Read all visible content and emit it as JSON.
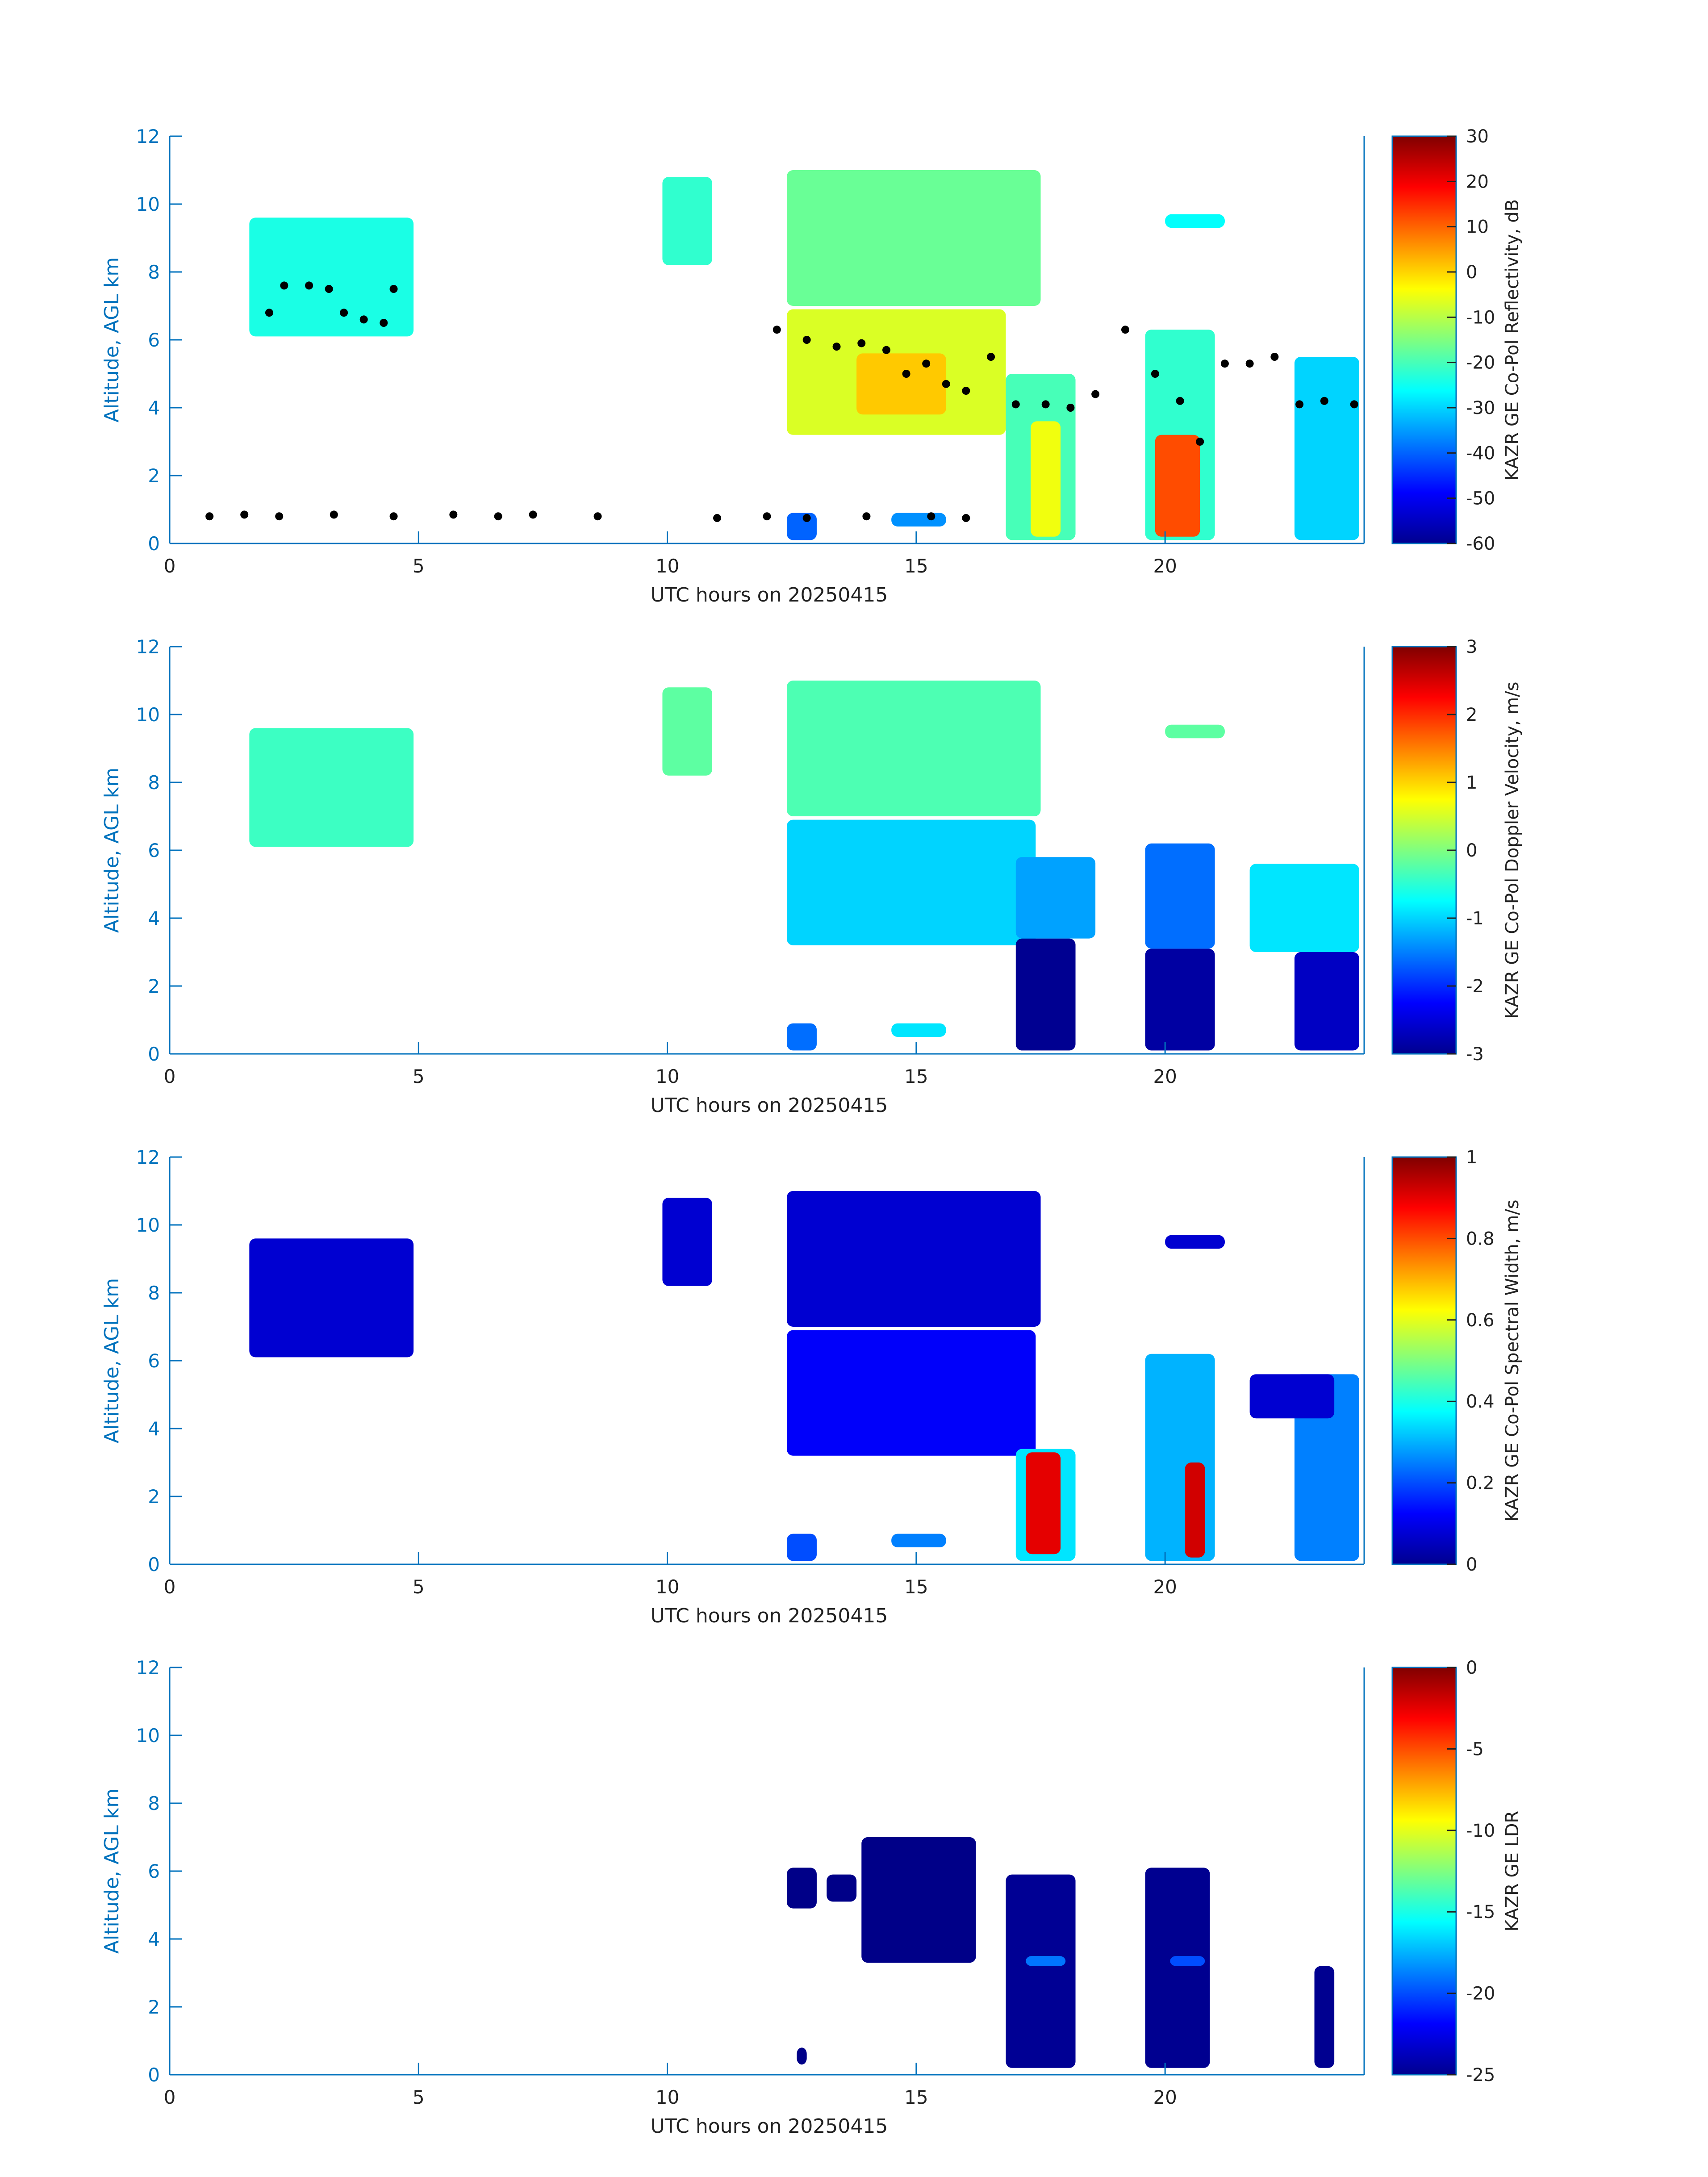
{
  "figure": {
    "xlabel": "UTC hours on 20250415",
    "ylabel": "Altitude, AGL km",
    "axis_color": "#0072bd",
    "colormap": "jet"
  },
  "chart_data": [
    {
      "type": "heatmap",
      "xlabel": "UTC hours on 20250415",
      "ylabel": "Altitude, AGL km",
      "xlim": [
        0,
        24
      ],
      "ylim": [
        0,
        12
      ],
      "xticks": [
        0,
        5,
        10,
        15,
        20
      ],
      "yticks": [
        0,
        2,
        4,
        6,
        8,
        10,
        12
      ],
      "colorbar": {
        "label": "KAZR GE Co-Pol Reflectivity, dB",
        "range": [
          -60,
          30
        ],
        "ticks": [
          -60,
          -50,
          -40,
          -30,
          -20,
          -10,
          0,
          10,
          20,
          30
        ]
      },
      "regions": [
        {
          "x0": 1.6,
          "x1": 4.9,
          "y0": 6.1,
          "y1": 9.6,
          "value": -24
        },
        {
          "x0": 9.9,
          "x1": 10.9,
          "y0": 8.2,
          "y1": 10.8,
          "value": -22
        },
        {
          "x0": 12.4,
          "x1": 17.5,
          "y0": 7.0,
          "y1": 11.0,
          "value": -17
        },
        {
          "x0": 12.4,
          "x1": 16.8,
          "y0": 3.2,
          "y1": 6.9,
          "value": -7
        },
        {
          "x0": 13.8,
          "x1": 15.6,
          "y0": 3.8,
          "y1": 5.6,
          "value": 1
        },
        {
          "x0": 16.8,
          "x1": 18.2,
          "y0": 0.1,
          "y1": 5.0,
          "value": -20
        },
        {
          "x0": 17.3,
          "x1": 17.9,
          "y0": 0.2,
          "y1": 3.6,
          "value": -5
        },
        {
          "x0": 19.6,
          "x1": 21.0,
          "y0": 0.1,
          "y1": 6.3,
          "value": -22
        },
        {
          "x0": 19.8,
          "x1": 20.7,
          "y0": 0.2,
          "y1": 3.2,
          "value": 12
        },
        {
          "x0": 22.6,
          "x1": 23.9,
          "y0": 0.1,
          "y1": 5.5,
          "value": -30
        },
        {
          "x0": 20.0,
          "x1": 21.2,
          "y0": 9.3,
          "y1": 9.7,
          "value": -26
        },
        {
          "x0": 12.4,
          "x1": 13.0,
          "y0": 0.1,
          "y1": 0.9,
          "value": -40
        },
        {
          "x0": 14.5,
          "x1": 15.6,
          "y0": 0.5,
          "y1": 0.9,
          "value": -36
        }
      ],
      "overlay_points": [
        [
          0.8,
          0.8
        ],
        [
          1.5,
          0.85
        ],
        [
          2.2,
          0.8
        ],
        [
          3.3,
          0.85
        ],
        [
          4.5,
          0.8
        ],
        [
          5.7,
          0.85
        ],
        [
          6.6,
          0.8
        ],
        [
          7.3,
          0.85
        ],
        [
          8.6,
          0.8
        ],
        [
          11.0,
          0.75
        ],
        [
          12.0,
          0.8
        ],
        [
          12.8,
          0.75
        ],
        [
          14.0,
          0.8
        ],
        [
          15.3,
          0.8
        ],
        [
          16.0,
          0.75
        ],
        [
          2.0,
          6.8
        ],
        [
          2.3,
          7.6
        ],
        [
          2.8,
          7.6
        ],
        [
          3.2,
          7.5
        ],
        [
          3.5,
          6.8
        ],
        [
          3.9,
          6.6
        ],
        [
          4.3,
          6.5
        ],
        [
          4.5,
          7.5
        ],
        [
          12.2,
          6.3
        ],
        [
          12.8,
          6.0
        ],
        [
          13.4,
          5.8
        ],
        [
          13.9,
          5.9
        ],
        [
          14.4,
          5.7
        ],
        [
          14.8,
          5.0
        ],
        [
          15.2,
          5.3
        ],
        [
          15.6,
          4.7
        ],
        [
          16.0,
          4.5
        ],
        [
          16.5,
          5.5
        ],
        [
          17.0,
          4.1
        ],
        [
          17.6,
          4.1
        ],
        [
          18.1,
          4.0
        ],
        [
          18.6,
          4.4
        ],
        [
          19.2,
          6.3
        ],
        [
          19.8,
          5.0
        ],
        [
          20.3,
          4.2
        ],
        [
          20.7,
          3.0
        ],
        [
          21.2,
          5.3
        ],
        [
          21.7,
          5.3
        ],
        [
          22.2,
          5.5
        ],
        [
          22.7,
          4.1
        ],
        [
          23.2,
          4.2
        ],
        [
          23.8,
          4.1
        ]
      ]
    },
    {
      "type": "heatmap",
      "xlabel": "UTC hours on 20250415",
      "ylabel": "Altitude, AGL km",
      "xlim": [
        0,
        24
      ],
      "ylim": [
        0,
        12
      ],
      "xticks": [
        0,
        5,
        10,
        15,
        20
      ],
      "yticks": [
        0,
        2,
        4,
        6,
        8,
        10,
        12
      ],
      "colorbar": {
        "label": "KAZR GE Co-Pol Doppler Velocity, m/s",
        "range": [
          -3,
          3
        ],
        "ticks": [
          -3,
          -2,
          -1,
          0,
          1,
          2,
          3
        ]
      },
      "regions": [
        {
          "x0": 1.6,
          "x1": 4.9,
          "y0": 6.1,
          "y1": 9.6,
          "value": -0.4
        },
        {
          "x0": 9.9,
          "x1": 10.9,
          "y0": 8.2,
          "y1": 10.8,
          "value": -0.2
        },
        {
          "x0": 12.4,
          "x1": 17.5,
          "y0": 7.0,
          "y1": 11.0,
          "value": -0.3
        },
        {
          "x0": 12.4,
          "x1": 17.4,
          "y0": 3.2,
          "y1": 6.9,
          "value": -1.0
        },
        {
          "x0": 17.0,
          "x1": 18.2,
          "y0": 0.1,
          "y1": 3.4,
          "value": -2.9
        },
        {
          "x0": 17.0,
          "x1": 18.6,
          "y0": 3.4,
          "y1": 5.8,
          "value": -1.3
        },
        {
          "x0": 19.6,
          "x1": 21.0,
          "y0": 0.1,
          "y1": 3.1,
          "value": -2.8
        },
        {
          "x0": 19.6,
          "x1": 21.0,
          "y0": 3.1,
          "y1": 6.2,
          "value": -1.6
        },
        {
          "x0": 22.6,
          "x1": 23.9,
          "y0": 0.1,
          "y1": 3.0,
          "value": -2.6
        },
        {
          "x0": 21.7,
          "x1": 23.9,
          "y0": 3.0,
          "y1": 5.6,
          "value": -0.9
        },
        {
          "x0": 20.0,
          "x1": 21.2,
          "y0": 9.3,
          "y1": 9.7,
          "value": -0.2
        },
        {
          "x0": 12.4,
          "x1": 13.0,
          "y0": 0.1,
          "y1": 0.9,
          "value": -1.6
        },
        {
          "x0": 14.5,
          "x1": 15.6,
          "y0": 0.5,
          "y1": 0.9,
          "value": -0.9
        }
      ]
    },
    {
      "type": "heatmap",
      "xlabel": "UTC hours on 20250415",
      "ylabel": "Altitude, AGL km",
      "xlim": [
        0,
        24
      ],
      "ylim": [
        0,
        12
      ],
      "xticks": [
        0,
        5,
        10,
        15,
        20
      ],
      "yticks": [
        0,
        2,
        4,
        6,
        8,
        10,
        12
      ],
      "colorbar": {
        "label": "KAZR GE Co-Pol Spectral Width, m/s",
        "range": [
          0,
          1
        ],
        "ticks": [
          0,
          0.2,
          0.4,
          0.6,
          0.8,
          1
        ]
      },
      "regions": [
        {
          "x0": 1.6,
          "x1": 4.9,
          "y0": 6.1,
          "y1": 9.6,
          "value": 0.08
        },
        {
          "x0": 9.9,
          "x1": 10.9,
          "y0": 8.2,
          "y1": 10.8,
          "value": 0.08
        },
        {
          "x0": 12.4,
          "x1": 17.5,
          "y0": 7.0,
          "y1": 11.0,
          "value": 0.08
        },
        {
          "x0": 12.4,
          "x1": 17.4,
          "y0": 3.2,
          "y1": 6.9,
          "value": 0.12
        },
        {
          "x0": 17.0,
          "x1": 18.2,
          "y0": 0.1,
          "y1": 3.4,
          "value": 0.35
        },
        {
          "x0": 17.2,
          "x1": 17.9,
          "y0": 0.3,
          "y1": 3.3,
          "value": 0.9
        },
        {
          "x0": 19.6,
          "x1": 21.0,
          "y0": 0.1,
          "y1": 6.2,
          "value": 0.3
        },
        {
          "x0": 20.4,
          "x1": 20.8,
          "y0": 0.2,
          "y1": 3.0,
          "value": 0.92
        },
        {
          "x0": 22.6,
          "x1": 23.9,
          "y0": 0.1,
          "y1": 5.6,
          "value": 0.25
        },
        {
          "x0": 21.7,
          "x1": 23.4,
          "y0": 4.3,
          "y1": 5.6,
          "value": 0.08
        },
        {
          "x0": 20.0,
          "x1": 21.2,
          "y0": 9.3,
          "y1": 9.7,
          "value": 0.08
        },
        {
          "x0": 12.4,
          "x1": 13.0,
          "y0": 0.1,
          "y1": 0.9,
          "value": 0.2
        },
        {
          "x0": 14.5,
          "x1": 15.6,
          "y0": 0.5,
          "y1": 0.9,
          "value": 0.25
        }
      ]
    },
    {
      "type": "heatmap",
      "xlabel": "UTC hours on 20250415",
      "ylabel": "Altitude, AGL km",
      "xlim": [
        0,
        24
      ],
      "ylim": [
        0,
        12
      ],
      "xticks": [
        0,
        5,
        10,
        15,
        20
      ],
      "yticks": [
        0,
        2,
        4,
        6,
        8,
        10,
        12
      ],
      "colorbar": {
        "label": "KAZR GE LDR",
        "range": [
          -25,
          0
        ],
        "ticks": [
          -25,
          -20,
          -15,
          -10,
          -5,
          0
        ]
      },
      "regions": [
        {
          "x0": 12.4,
          "x1": 13.0,
          "y0": 4.9,
          "y1": 6.1,
          "value": -24.8
        },
        {
          "x0": 13.2,
          "x1": 13.8,
          "y0": 5.1,
          "y1": 5.9,
          "value": -24.8
        },
        {
          "x0": 13.9,
          "x1": 16.2,
          "y0": 3.3,
          "y1": 7.0,
          "value": -24.8
        },
        {
          "x0": 16.8,
          "x1": 18.2,
          "y0": 0.2,
          "y1": 5.9,
          "value": -24.5
        },
        {
          "x0": 17.2,
          "x1": 18.0,
          "y0": 3.2,
          "y1": 3.5,
          "value": -19
        },
        {
          "x0": 19.6,
          "x1": 20.9,
          "y0": 0.2,
          "y1": 6.1,
          "value": -24.6
        },
        {
          "x0": 20.1,
          "x1": 20.8,
          "y0": 3.2,
          "y1": 3.5,
          "value": -20
        },
        {
          "x0": 23.0,
          "x1": 23.4,
          "y0": 0.2,
          "y1": 3.2,
          "value": -24.6
        },
        {
          "x0": 12.6,
          "x1": 12.8,
          "y0": 0.3,
          "y1": 0.8,
          "value": -24.8
        }
      ]
    }
  ]
}
